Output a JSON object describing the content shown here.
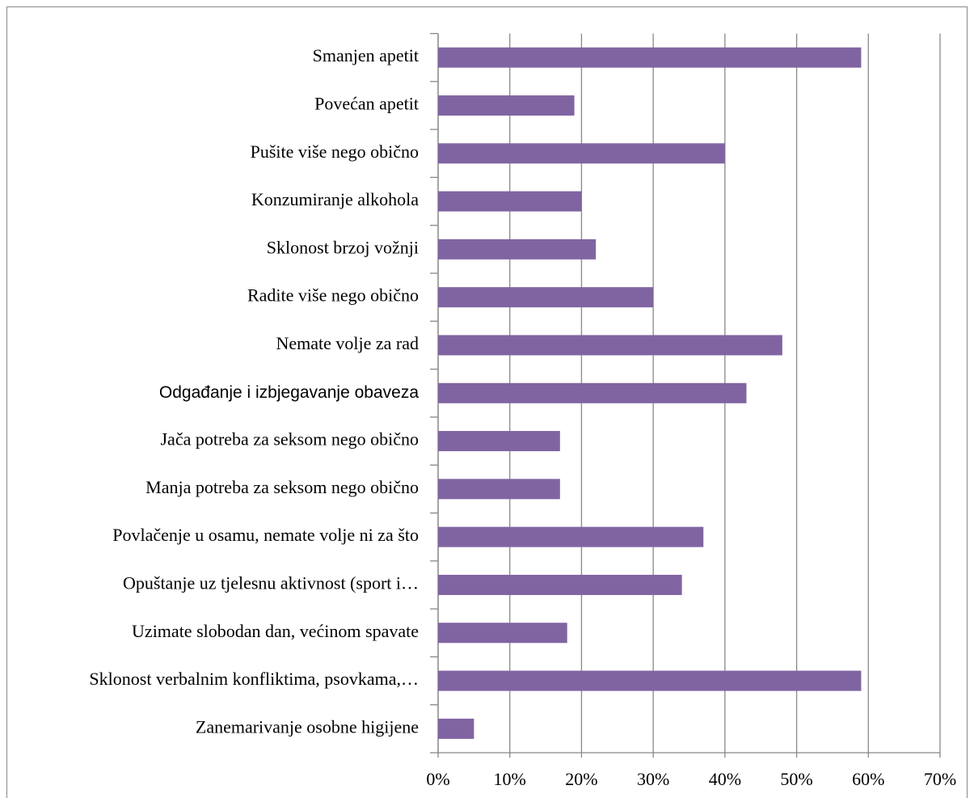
{
  "chart_data": {
    "type": "bar",
    "orientation": "horizontal",
    "categories": [
      "Smanjen apetit",
      "Povećan apetit",
      "Pušite više nego obično",
      "Konzumiranje alkohola",
      "Sklonost brzoj vožnji",
      "Radite više nego obično",
      "Nemate volje za rad",
      "Odgađanje i izbjegavanje obaveza",
      "Jača potreba za seksom nego obično",
      "Manja potreba za seksom nego obično",
      "Povlačenje u osamu, nemate volje ni za što",
      "Opuštanje uz tjelesnu aktivnost (sport i…",
      "Uzimate slobodan dan, većinom spavate",
      "Sklonost verbalnim konfliktima, psovkama,…",
      "Zanemarivanje osobne higijene"
    ],
    "values": [
      59,
      19,
      40,
      20,
      22,
      30,
      48,
      43,
      17,
      17,
      37,
      34,
      18,
      59,
      5
    ],
    "color": "#8064a2",
    "xlim": [
      0,
      70
    ],
    "xticks": [
      {
        "value": 0,
        "label": "0%"
      },
      {
        "value": 10,
        "label": "10%"
      },
      {
        "value": 20,
        "label": "20%"
      },
      {
        "value": 30,
        "label": "30%"
      },
      {
        "value": 40,
        "label": "40%"
      },
      {
        "value": 50,
        "label": "50%"
      },
      {
        "value": 60,
        "label": "60%"
      },
      {
        "value": 70,
        "label": "70%"
      }
    ],
    "grid": true
  }
}
